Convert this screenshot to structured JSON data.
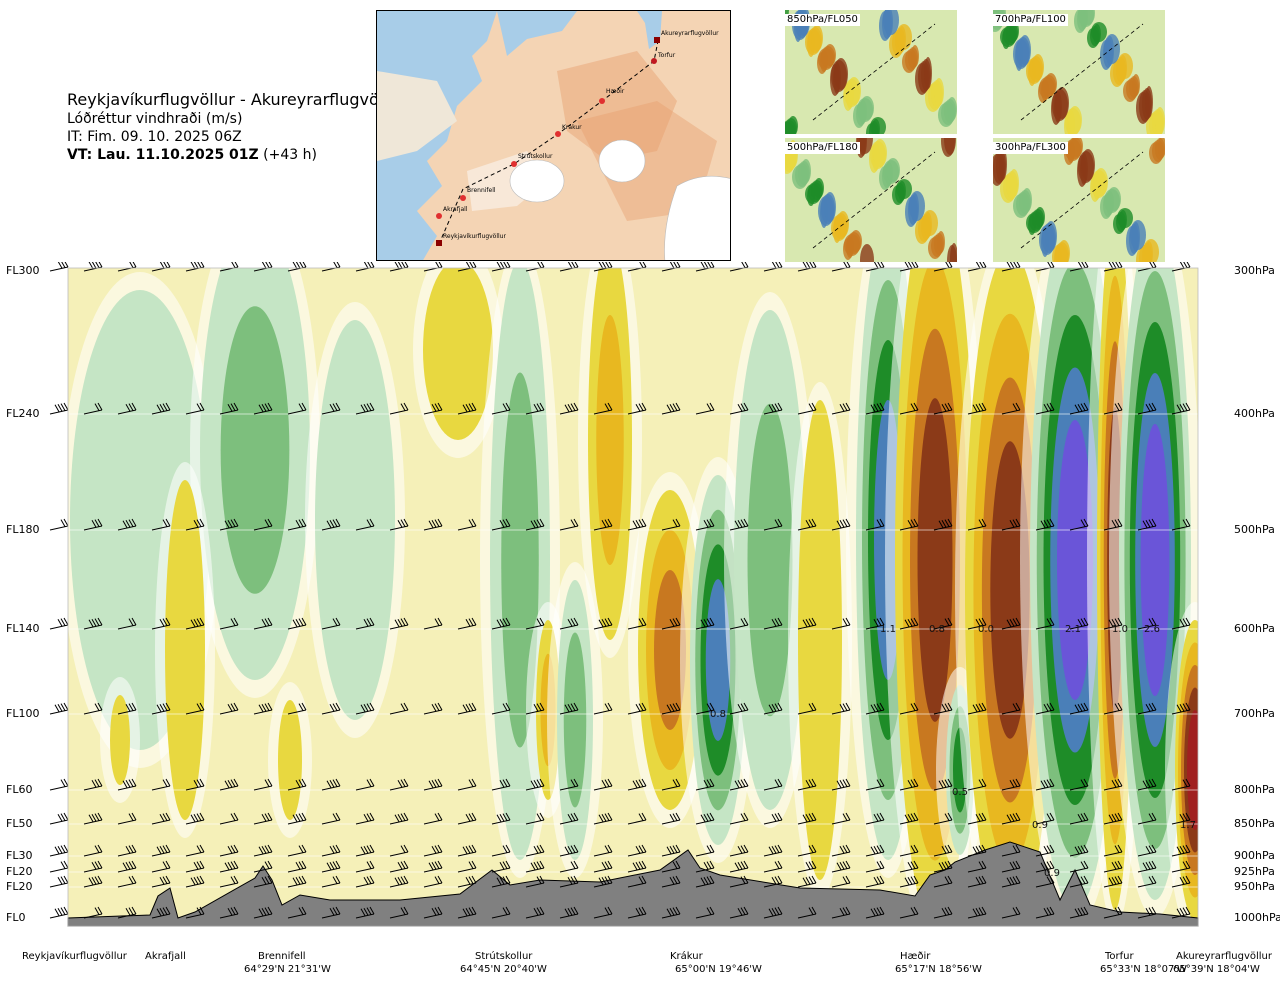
{
  "header": {
    "route": "Reykjavíkurflugvöllur - Akureyrarflugvöllur",
    "parameter": "Lóðréttur vindhraði (m/s)",
    "issue_time": "IT: Fim. 09. 10. 2025 06Z",
    "valid_label": "VT: Lau. 11.10.2025 01Z",
    "valid_offset": "(+43 h)"
  },
  "map": {
    "waypoints": [
      "Akureyrarflugvöllur",
      "Torfur",
      "Hæðir",
      "Krákur",
      "Strútskollur",
      "Brennifell",
      "Akrafjall",
      "Reykjavíkurflugvöllur"
    ]
  },
  "thumbnails": [
    {
      "label": "850hPa/FL050"
    },
    {
      "label": "700hPa/FL100"
    },
    {
      "label": "500hPa/FL180"
    },
    {
      "label": "300hPa/FL300"
    }
  ],
  "chart_data": {
    "type": "heatmap",
    "title": "Reykjavíkurflugvöllur - Akureyrarflugvöllur",
    "variable": "Lóðréttur vindhraði (m/s)",
    "x_stations": [
      {
        "name": "Reykjavíkurflugvöllur",
        "coord": ""
      },
      {
        "name": "Akrafjall",
        "coord": ""
      },
      {
        "name": "Brennifell",
        "coord": "64°29'N 21°31'W"
      },
      {
        "name": "Strútskollur",
        "coord": "64°45'N 20°40'W"
      },
      {
        "name": "Krákur",
        "coord": "65°00'N 19°46'W"
      },
      {
        "name": "Hæðir",
        "coord": "65°17'N 18°56'W"
      },
      {
        "name": "Torfur",
        "coord": "65°33'N 18°07'W"
      },
      {
        "name": "Akureyrarflugvöllur",
        "coord": "65°39'N 18°04'W"
      }
    ],
    "y_levels": [
      {
        "fl": "FL300",
        "hpa": "300hPa"
      },
      {
        "fl": "FL240",
        "hpa": "400hPa"
      },
      {
        "fl": "FL180",
        "hpa": "500hPa"
      },
      {
        "fl": "FL140",
        "hpa": "600hPa"
      },
      {
        "fl": "FL100",
        "hpa": "700hPa"
      },
      {
        "fl": "FL60",
        "hpa": "800hPa"
      },
      {
        "fl": "FL50",
        "hpa": "850hPa"
      },
      {
        "fl": "FL30",
        "hpa": "900hPa"
      },
      {
        "fl": "FL20",
        "hpa": "925hPa"
      },
      {
        "fl": "FL20",
        "hpa": "950hPa"
      },
      {
        "fl": "FL0",
        "hpa": "1000hPa"
      }
    ],
    "contour_labels": [
      "1.1",
      "0.8",
      "0.0",
      "2.1",
      "1.0",
      "2.6",
      "0.8",
      "0.5",
      "0.9",
      "0.9",
      "1.7"
    ],
    "colors": {
      "strong_up": "#6a55d8",
      "up3": "#4a7fb8",
      "up2": "#1e8c28",
      "up1": "#7dbf7d",
      "weak_up": "#c5e5c5",
      "neutral": "#f5f0b8",
      "weak_down": "#e8d840",
      "down1": "#e8b820",
      "down2": "#c87820",
      "down3": "#8b3a18",
      "strong_down": "#a02020",
      "terrain": "#808080"
    }
  }
}
